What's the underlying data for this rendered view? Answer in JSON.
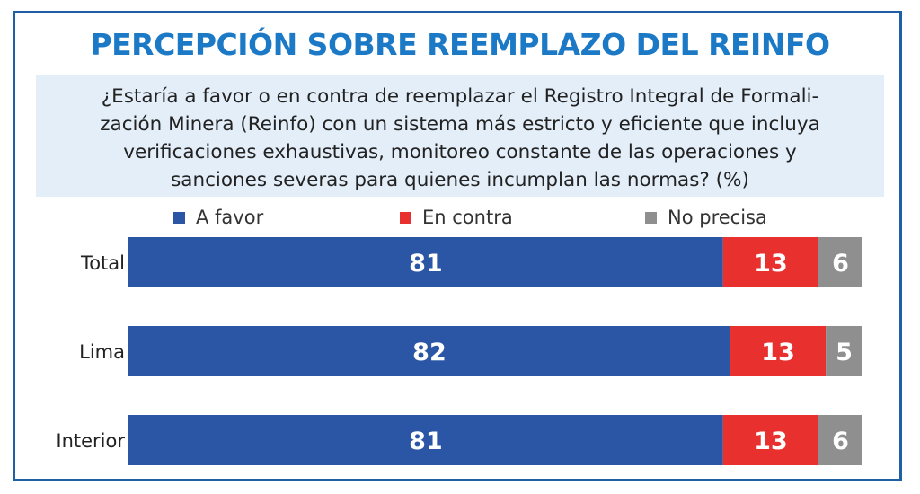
{
  "chart_data": {
    "type": "bar",
    "orientation": "horizontal",
    "stacked": true,
    "title": "PERCEPCIÓN SOBRE REEMPLAZO DEL REINFO",
    "subtitle": "¿Estaría a favor o en contra de reemplazar el Registro Integral de Formalización Minera (Reinfo) con un sistema más estricto y eficiente que incluya verificaciones exhaustivas, monitoreo constante de las operaciones y sanciones severas para quienes incumplan las normas? (%)",
    "subtitle_lines": [
      "¿Estaría a favor o en contra de reemplazar el Registro Integral de Formali-",
      "zación Minera (Reinfo) con un sistema más estricto y eficiente que incluya",
      "verificaciones exhaustivas, monitoreo constante de las operaciones y",
      "sanciones severas para quienes incumplan las normas? (%)"
    ],
    "categories": [
      "Total",
      "Lima",
      "Interior"
    ],
    "series": [
      {
        "name": "A favor",
        "color": "#2b55a5",
        "values": [
          81,
          82,
          81
        ]
      },
      {
        "name": "En contra",
        "color": "#e8312f",
        "values": [
          13,
          13,
          13
        ]
      },
      {
        "name": "No precisa",
        "color": "#8f8f8f",
        "values": [
          6,
          5,
          6
        ]
      }
    ],
    "xlim": [
      0,
      100
    ],
    "grid": false,
    "legend": "top"
  }
}
